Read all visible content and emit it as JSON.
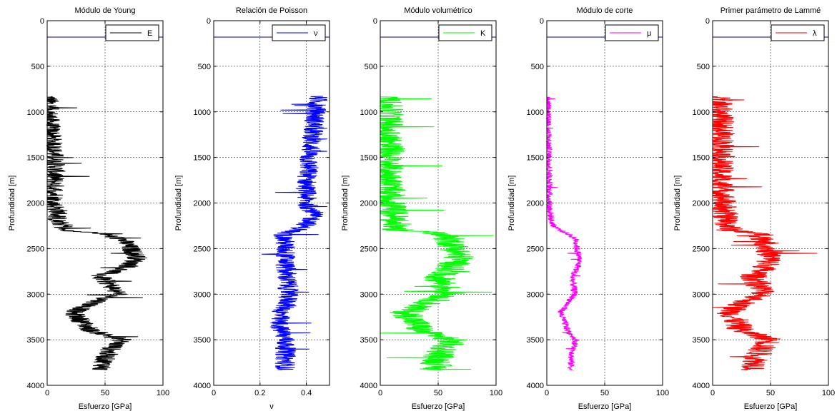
{
  "chart_data": [
    {
      "type": "line",
      "title": "Módulo de Young",
      "xlabel": "Esfuerzo [GPa]",
      "ylabel": "Profundidad [m]",
      "xlim": [
        0,
        100
      ],
      "ylim": [
        4000,
        0
      ],
      "y_reversed": true,
      "xticks": [
        "0",
        "50",
        "100"
      ],
      "yticks": [
        "0",
        "500",
        "1000",
        "1500",
        "2000",
        "2500",
        "3000",
        "3500",
        "4000"
      ],
      "grid": true,
      "legend_position": "top-right",
      "marker_line": {
        "depth": 180,
        "color": "#00008b"
      },
      "series": [
        {
          "name": "E",
          "color": "#000000",
          "profile": [
            [
              830,
              1.5
            ],
            [
              1000,
              1.5
            ],
            [
              1200,
              3
            ],
            [
              1400,
              5
            ],
            [
              1500,
              6
            ],
            [
              1600,
              7
            ],
            [
              1800,
              6
            ],
            [
              1900,
              7
            ],
            [
              2000,
              5
            ],
            [
              2100,
              10
            ],
            [
              2200,
              8
            ],
            [
              2250,
              15
            ],
            [
              2300,
              12
            ],
            [
              2330,
              45
            ],
            [
              2400,
              65
            ],
            [
              2500,
              72
            ],
            [
              2600,
              78
            ],
            [
              2700,
              70
            ],
            [
              2800,
              45
            ],
            [
              2900,
              55
            ],
            [
              3000,
              62
            ],
            [
              3050,
              48
            ],
            [
              3100,
              40
            ],
            [
              3200,
              22
            ],
            [
              3300,
              30
            ],
            [
              3400,
              38
            ],
            [
              3500,
              65
            ],
            [
              3600,
              55
            ],
            [
              3700,
              50
            ],
            [
              3800,
              48
            ],
            [
              3830,
              45
            ]
          ],
          "jitter": 9
        }
      ]
    },
    {
      "type": "line",
      "title": "Relación de Poisson",
      "xlabel": "ν",
      "ylabel": "Profundidad [m]",
      "xlim": [
        0,
        0.5
      ],
      "ylim": [
        4000,
        0
      ],
      "y_reversed": true,
      "xticks": [
        "0",
        "0.2",
        "0.4"
      ],
      "yticks": [
        "0",
        "500",
        "1000",
        "1500",
        "2000",
        "2500",
        "3000",
        "3500",
        "4000"
      ],
      "grid": true,
      "legend_position": "top-right",
      "marker_line": {
        "depth": 180,
        "color": "#00008b"
      },
      "series": [
        {
          "name": "ν",
          "color": "#0000ff",
          "profile": [
            [
              830,
              0.45
            ],
            [
              1000,
              0.44
            ],
            [
              1200,
              0.43
            ],
            [
              1400,
              0.42
            ],
            [
              1500,
              0.41
            ],
            [
              1600,
              0.41
            ],
            [
              1800,
              0.4
            ],
            [
              2000,
              0.4
            ],
            [
              2100,
              0.43
            ],
            [
              2200,
              0.42
            ],
            [
              2300,
              0.36
            ],
            [
              2330,
              0.3
            ],
            [
              2500,
              0.31
            ],
            [
              2700,
              0.31
            ],
            [
              2900,
              0.32
            ],
            [
              3000,
              0.32
            ],
            [
              3100,
              0.32
            ],
            [
              3200,
              0.29
            ],
            [
              3300,
              0.28
            ],
            [
              3400,
              0.29
            ],
            [
              3500,
              0.31
            ],
            [
              3600,
              0.31
            ],
            [
              3800,
              0.31
            ],
            [
              3830,
              0.3
            ]
          ],
          "jitter": 0.045
        }
      ]
    },
    {
      "type": "line",
      "title": "Módulo volumétrico",
      "xlabel": "Esfuerzo [GPa]",
      "ylabel": "Profundidad [m]",
      "xlim": [
        0,
        100
      ],
      "ylim": [
        4000,
        0
      ],
      "y_reversed": true,
      "xticks": [
        "0",
        "50",
        "100"
      ],
      "yticks": [
        "0",
        "500",
        "1000",
        "1500",
        "2000",
        "2500",
        "3000",
        "3500",
        "4000"
      ],
      "grid": true,
      "legend_position": "top-right",
      "marker_line": {
        "depth": 180,
        "color": "#00008b"
      },
      "series": [
        {
          "name": "K",
          "color": "#00ff00",
          "profile": [
            [
              830,
              5
            ],
            [
              1000,
              6
            ],
            [
              1200,
              7
            ],
            [
              1400,
              8
            ],
            [
              1500,
              7
            ],
            [
              1600,
              6
            ],
            [
              1800,
              7
            ],
            [
              2000,
              9
            ],
            [
              2100,
              11
            ],
            [
              2200,
              12
            ],
            [
              2300,
              15
            ],
            [
              2330,
              50
            ],
            [
              2400,
              60
            ],
            [
              2500,
              65
            ],
            [
              2600,
              68
            ],
            [
              2700,
              62
            ],
            [
              2800,
              50
            ],
            [
              2900,
              55
            ],
            [
              3000,
              60
            ],
            [
              3100,
              40
            ],
            [
              3200,
              22
            ],
            [
              3300,
              30
            ],
            [
              3400,
              35
            ],
            [
              3500,
              62
            ],
            [
              3600,
              55
            ],
            [
              3700,
              50
            ],
            [
              3800,
              48
            ],
            [
              3830,
              45
            ]
          ],
          "jitter": 14
        }
      ]
    },
    {
      "type": "line",
      "title": "Módulo de corte",
      "xlabel": "Esfuerzo [GPa]",
      "ylabel": "Profundidad [m]",
      "xlim": [
        0,
        100
      ],
      "ylim": [
        4000,
        0
      ],
      "y_reversed": true,
      "xticks": [
        "0",
        "50",
        "100"
      ],
      "yticks": [
        "0",
        "500",
        "1000",
        "1500",
        "2000",
        "2500",
        "3000",
        "3500",
        "4000"
      ],
      "grid": true,
      "legend_position": "top-right",
      "marker_line": {
        "depth": 180,
        "color": "#00008b"
      },
      "series": [
        {
          "name": "μ",
          "color": "#ff00ff",
          "profile": [
            [
              830,
              0.5
            ],
            [
              1000,
              0.5
            ],
            [
              1200,
              1
            ],
            [
              1400,
              1.5
            ],
            [
              1600,
              2
            ],
            [
              1800,
              2
            ],
            [
              2000,
              2
            ],
            [
              2100,
              3
            ],
            [
              2200,
              4
            ],
            [
              2250,
              6
            ],
            [
              2300,
              12
            ],
            [
              2350,
              20
            ],
            [
              2400,
              25
            ],
            [
              2500,
              26
            ],
            [
              2600,
              28
            ],
            [
              2700,
              27
            ],
            [
              2800,
              22
            ],
            [
              2900,
              23
            ],
            [
              3000,
              24
            ],
            [
              3100,
              18
            ],
            [
              3200,
              12
            ],
            [
              3300,
              15
            ],
            [
              3400,
              18
            ],
            [
              3500,
              25
            ],
            [
              3600,
              23
            ],
            [
              3700,
              21
            ],
            [
              3800,
              21
            ],
            [
              3830,
              20
            ]
          ],
          "jitter": 3
        }
      ]
    },
    {
      "type": "line",
      "title": "Primer parámetro de Lammé",
      "xlabel": "Esfuerzo [GPa]",
      "ylabel": "Profundidad [m]",
      "xlim": [
        0,
        100
      ],
      "ylim": [
        4000,
        0
      ],
      "y_reversed": true,
      "xticks": [
        "0",
        "50",
        "100"
      ],
      "yticks": [
        "0",
        "500",
        "1000",
        "1500",
        "2000",
        "2500",
        "3000",
        "3500",
        "4000"
      ],
      "grid": true,
      "legend_position": "top-right",
      "marker_line": {
        "depth": 180,
        "color": "#00008b"
      },
      "series": [
        {
          "name": "λ",
          "color": "#ff0000",
          "profile": [
            [
              830,
              5
            ],
            [
              1000,
              6
            ],
            [
              1200,
              7
            ],
            [
              1400,
              8
            ],
            [
              1500,
              7
            ],
            [
              1600,
              6
            ],
            [
              1800,
              7
            ],
            [
              2000,
              9
            ],
            [
              2100,
              10
            ],
            [
              2200,
              12
            ],
            [
              2300,
              15
            ],
            [
              2330,
              40
            ],
            [
              2400,
              45
            ],
            [
              2500,
              48
            ],
            [
              2600,
              50
            ],
            [
              2700,
              46
            ],
            [
              2800,
              35
            ],
            [
              2900,
              40
            ],
            [
              3000,
              45
            ],
            [
              3100,
              25
            ],
            [
              3200,
              15
            ],
            [
              3300,
              20
            ],
            [
              3400,
              25
            ],
            [
              3500,
              50
            ],
            [
              3600,
              42
            ],
            [
              3700,
              38
            ],
            [
              3800,
              37
            ],
            [
              3830,
              35
            ]
          ],
          "jitter": 12
        }
      ]
    }
  ]
}
